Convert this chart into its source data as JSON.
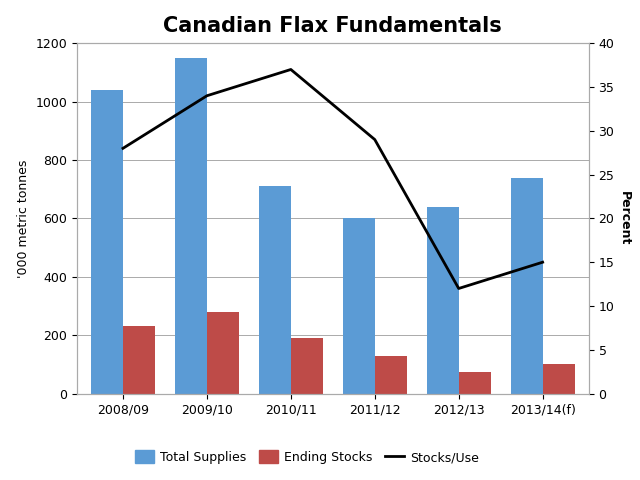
{
  "title": "Canadian Flax Fundamentals",
  "categories": [
    "2008/09",
    "2009/10",
    "2010/11",
    "2011/12",
    "2012/13",
    "2013/14(f)"
  ],
  "total_supplies": [
    1040,
    1150,
    710,
    600,
    640,
    740
  ],
  "ending_stocks": [
    230,
    280,
    190,
    130,
    75,
    100
  ],
  "stocks_use": [
    28,
    34,
    37,
    29,
    12,
    15
  ],
  "bar_color_supply": "#5B9BD5",
  "bar_color_stocks": "#BE4B48",
  "line_color": "#000000",
  "ylabel_left": "'000 metric tonnes",
  "ylabel_right": "Percent",
  "ylim_left": [
    0,
    1200
  ],
  "ylim_right": [
    0,
    40
  ],
  "yticks_left": [
    0,
    200,
    400,
    600,
    800,
    1000,
    1200
  ],
  "yticks_right": [
    0,
    5,
    10,
    15,
    20,
    25,
    30,
    35,
    40
  ],
  "legend_labels": [
    "Total Supplies",
    "Ending Stocks",
    "Stocks/Use"
  ],
  "background_color": "#FFFFFF",
  "title_fontsize": 15,
  "label_fontsize": 9,
  "tick_fontsize": 9,
  "bar_width": 0.38,
  "grid_color": "#AAAAAA",
  "border_color": "#AAAAAA"
}
